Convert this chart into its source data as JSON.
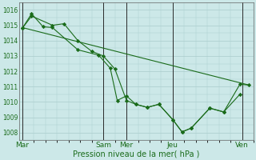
{
  "title": "",
  "xlabel": "Pression niveau de la mer( hPa )",
  "background_color": "#cce8e8",
  "grid_color": "#aacccc",
  "line_color": "#1a6b1a",
  "ylim": [
    1007.5,
    1016.5
  ],
  "day_labels": [
    "Mar",
    "Sam",
    "Mer",
    "Jeu",
    "Ven"
  ],
  "day_x_positions": [
    0,
    3.5,
    4.5,
    6.5,
    9.5
  ],
  "vline_positions": [
    0,
    3.5,
    4.5,
    6.5,
    9.5
  ],
  "series": [
    {
      "x": [
        0,
        0.4,
        0.9,
        1.3,
        2.4,
        3.3,
        3.8,
        4.1,
        4.5,
        4.9,
        5.4,
        5.9,
        6.5,
        6.9,
        7.3,
        8.1,
        8.7,
        9.4
      ],
      "y": [
        1014.8,
        1015.75,
        1014.9,
        1014.85,
        1013.4,
        1013.05,
        1012.2,
        1010.1,
        1010.4,
        1009.85,
        1009.65,
        1009.85,
        1008.85,
        1008.05,
        1008.3,
        1009.6,
        1009.35,
        1010.5
      ]
    },
    {
      "x": [
        0,
        0.4,
        1.3,
        1.8,
        2.4,
        3.0,
        3.5,
        4.0,
        4.5,
        4.9,
        5.4,
        5.9,
        6.5,
        6.9,
        7.3,
        8.1,
        8.7,
        9.4,
        9.8
      ],
      "y": [
        1014.8,
        1015.6,
        1015.0,
        1015.1,
        1014.0,
        1013.3,
        1013.0,
        1012.15,
        1010.1,
        1009.85,
        1009.65,
        1009.85,
        1008.85,
        1008.05,
        1008.3,
        1009.6,
        1009.35,
        1011.15,
        1011.1
      ]
    },
    {
      "x": [
        0,
        9.8
      ],
      "y": [
        1014.85,
        1011.1
      ]
    }
  ],
  "yticks": [
    1008,
    1009,
    1010,
    1011,
    1012,
    1013,
    1014,
    1015,
    1016
  ],
  "minor_ytick_interval": 0.5,
  "xlim": [
    -0.15,
    10.0
  ]
}
